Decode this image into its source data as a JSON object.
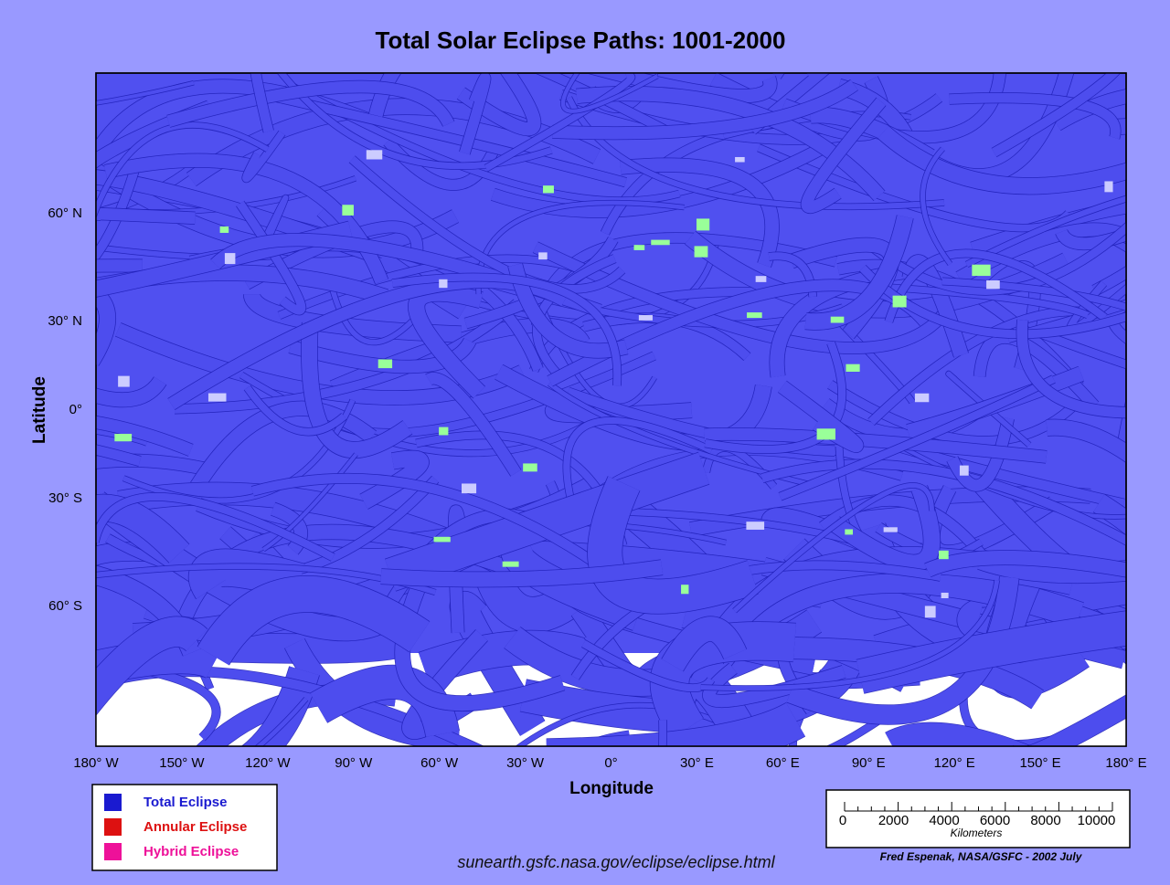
{
  "header": {
    "title": "Total Solar Eclipse Paths:  1001-2000"
  },
  "axes": {
    "x_label": "Longitude",
    "y_label": "Latitude",
    "x_ticks": [
      "180° W",
      "150° W",
      "120° W",
      "90° W",
      "60° W",
      "30° W",
      "0°",
      "30° E",
      "60° E",
      "90° E",
      "120° E",
      "150° E",
      "180° E"
    ],
    "y_ticks": [
      "60° N",
      "30° N",
      "0°",
      "30° S",
      "60° S"
    ]
  },
  "legend": {
    "items": [
      {
        "label": "Total Eclipse",
        "color": "#1a1ad0"
      },
      {
        "label": "Annular Eclipse",
        "color": "#dd1111"
      },
      {
        "label": "Hybrid Eclipse",
        "color": "#ee1199"
      }
    ]
  },
  "scale_bar": {
    "labels": [
      0,
      2000,
      4000,
      6000,
      8000,
      10000
    ],
    "unit": "Kilometers"
  },
  "footer": {
    "url": "sunearth.gsfc.nasa.gov/eclipse/eclipse.html",
    "credit": "Fred Espenak, NASA/GSFC - 2002 July"
  }
}
